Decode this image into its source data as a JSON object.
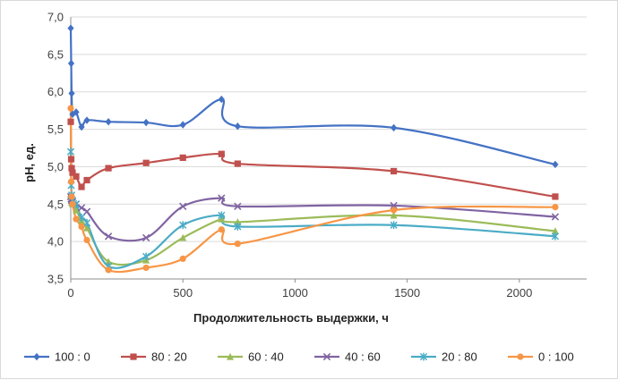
{
  "chart_data": {
    "type": "line",
    "xlabel": "Продолжительность выдержки, ч",
    "ylabel": "pH, ед.",
    "xlim": [
      0,
      2300
    ],
    "ylim": [
      3.5,
      7.0
    ],
    "x_ticks": [
      0,
      500,
      1000,
      1500,
      2000
    ],
    "y_ticks": [
      3.5,
      4.0,
      4.5,
      5.0,
      5.5,
      6.0,
      6.5,
      7.0
    ],
    "x_tick_labels": [
      "0",
      "500",
      "1000",
      "1500",
      "2000"
    ],
    "y_tick_labels": [
      "3,5",
      "4,0",
      "4,5",
      "5,0",
      "5,5",
      "6,0",
      "6,5",
      "7,0"
    ],
    "grid": "horizontal",
    "legend_position": "bottom",
    "series": [
      {
        "name": "100 : 0",
        "color": "#4472C4",
        "marker": "diamond",
        "points": [
          [
            0,
            6.85
          ],
          [
            2,
            6.38
          ],
          [
            4,
            5.98
          ],
          [
            8,
            5.7
          ],
          [
            24,
            5.73
          ],
          [
            48,
            5.53
          ],
          [
            72,
            5.62
          ],
          [
            168,
            5.6
          ],
          [
            336,
            5.59
          ],
          [
            500,
            5.56
          ],
          [
            672,
            5.9
          ],
          [
            744,
            5.54
          ],
          [
            1440,
            5.52
          ],
          [
            2160,
            5.03
          ]
        ]
      },
      {
        "name": "80 : 20",
        "color": "#C0504D",
        "marker": "square",
        "points": [
          [
            0,
            5.6
          ],
          [
            2,
            5.1
          ],
          [
            4,
            4.98
          ],
          [
            8,
            4.92
          ],
          [
            24,
            4.87
          ],
          [
            48,
            4.73
          ],
          [
            72,
            4.82
          ],
          [
            168,
            4.98
          ],
          [
            336,
            5.05
          ],
          [
            500,
            5.12
          ],
          [
            672,
            5.17
          ],
          [
            744,
            5.04
          ],
          [
            1440,
            4.94
          ],
          [
            2160,
            4.6
          ]
        ]
      },
      {
        "name": "60 : 40",
        "color": "#9BBB59",
        "marker": "triangle",
        "points": [
          [
            0,
            4.62
          ],
          [
            2,
            4.55
          ],
          [
            4,
            4.52
          ],
          [
            8,
            4.5
          ],
          [
            24,
            4.42
          ],
          [
            48,
            4.28
          ],
          [
            72,
            4.18
          ],
          [
            168,
            3.73
          ],
          [
            336,
            3.75
          ],
          [
            500,
            4.05
          ],
          [
            672,
            4.3
          ],
          [
            744,
            4.26
          ],
          [
            1440,
            4.35
          ],
          [
            2160,
            4.14
          ]
        ]
      },
      {
        "name": "40 : 60",
        "color": "#8064A2",
        "marker": "cross",
        "points": [
          [
            0,
            4.6
          ],
          [
            2,
            4.57
          ],
          [
            4,
            4.55
          ],
          [
            8,
            4.53
          ],
          [
            24,
            4.5
          ],
          [
            48,
            4.45
          ],
          [
            72,
            4.4
          ],
          [
            168,
            4.07
          ],
          [
            336,
            4.05
          ],
          [
            500,
            4.47
          ],
          [
            672,
            4.58
          ],
          [
            744,
            4.47
          ],
          [
            1440,
            4.48
          ],
          [
            2160,
            4.33
          ]
        ]
      },
      {
        "name": "20 : 80",
        "color": "#4BACC6",
        "marker": "star",
        "points": [
          [
            0,
            5.2
          ],
          [
            2,
            4.75
          ],
          [
            4,
            4.62
          ],
          [
            8,
            4.55
          ],
          [
            24,
            4.5
          ],
          [
            48,
            4.32
          ],
          [
            72,
            4.25
          ],
          [
            168,
            3.67
          ],
          [
            336,
            3.8
          ],
          [
            500,
            4.22
          ],
          [
            672,
            4.35
          ],
          [
            744,
            4.2
          ],
          [
            1440,
            4.22
          ],
          [
            2160,
            4.07
          ]
        ]
      },
      {
        "name": "0 : 100",
        "color": "#F79646",
        "marker": "circle",
        "points": [
          [
            0,
            5.78
          ],
          [
            2,
            4.8
          ],
          [
            4,
            4.6
          ],
          [
            8,
            4.5
          ],
          [
            24,
            4.3
          ],
          [
            48,
            4.2
          ],
          [
            72,
            4.02
          ],
          [
            168,
            3.62
          ],
          [
            336,
            3.65
          ],
          [
            500,
            3.77
          ],
          [
            672,
            4.16
          ],
          [
            744,
            3.97
          ],
          [
            1440,
            4.42
          ],
          [
            2160,
            4.46
          ]
        ]
      }
    ]
  }
}
